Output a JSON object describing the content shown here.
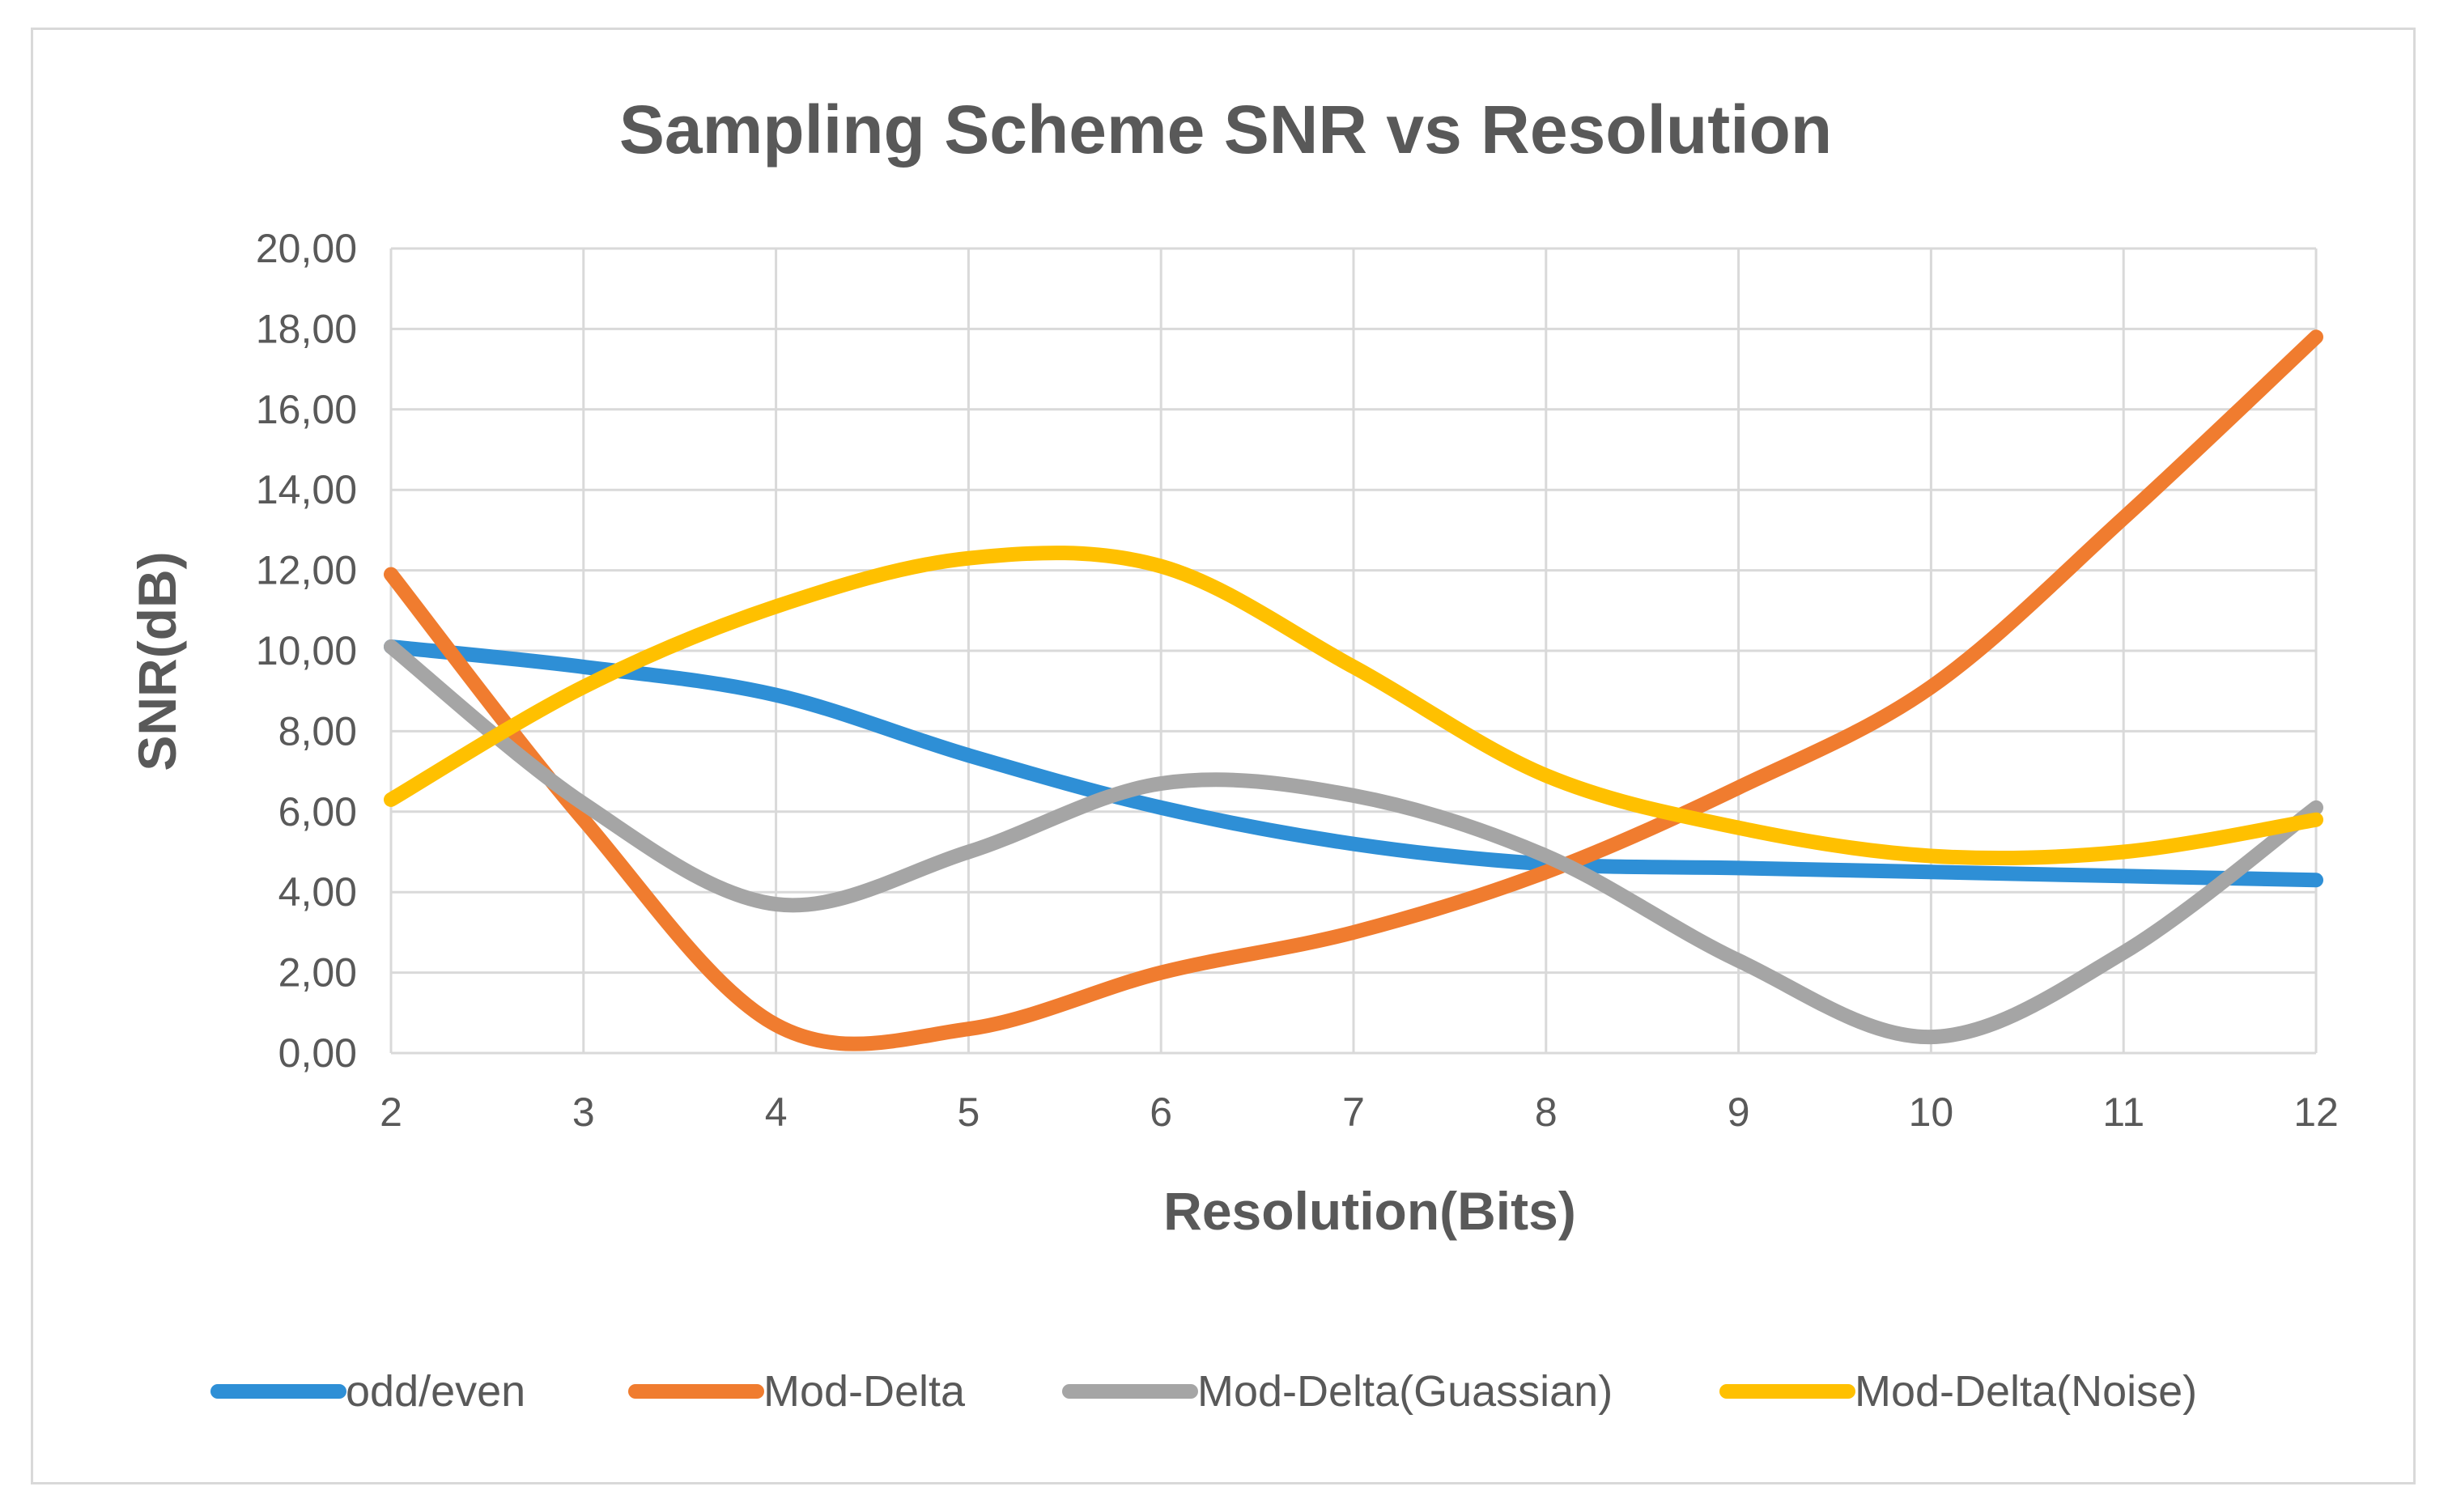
{
  "chart_data": {
    "type": "line",
    "title": "Sampling Scheme SNR vs Resolution",
    "xlabel": "Resolution(Bits)",
    "ylabel": "SNR(dB)",
    "x": [
      2,
      3,
      4,
      5,
      6,
      7,
      8,
      9,
      10,
      11,
      12
    ],
    "xlim": [
      2,
      12
    ],
    "ylim": [
      0,
      20
    ],
    "ytick_labels": [
      "0,00",
      "2,00",
      "4,00",
      "6,00",
      "8,00",
      "10,00",
      "12,00",
      "14,00",
      "16,00",
      "18,00",
      "20,00"
    ],
    "yticks": [
      0,
      2,
      4,
      6,
      8,
      10,
      12,
      14,
      16,
      18,
      20
    ],
    "grid": true,
    "legend_position": "bottom",
    "series": [
      {
        "name": "odd/even",
        "color": "#2e8fd6",
        "values": [
          10.1,
          9.6,
          8.9,
          7.4,
          6.1,
          5.2,
          4.7,
          4.6,
          4.5,
          4.4,
          4.3
        ]
      },
      {
        "name": "Mod-Delta",
        "color": "#f07c2f",
        "values": [
          11.9,
          5.8,
          0.7,
          0.6,
          2.0,
          3.0,
          4.5,
          6.6,
          9.1,
          13.3,
          17.8
        ]
      },
      {
        "name": "Mod-Delta(Guassian)",
        "color": "#a5a5a5",
        "values": [
          10.1,
          6.2,
          3.7,
          5.0,
          6.7,
          6.4,
          4.9,
          2.3,
          0.4,
          2.5,
          6.1
        ]
      },
      {
        "name": "Mod-Delta(Noise)",
        "color": "#ffc000",
        "values": [
          6.3,
          9.1,
          11.1,
          12.3,
          12.1,
          9.6,
          6.9,
          5.6,
          4.9,
          5.0,
          5.8
        ]
      }
    ]
  }
}
